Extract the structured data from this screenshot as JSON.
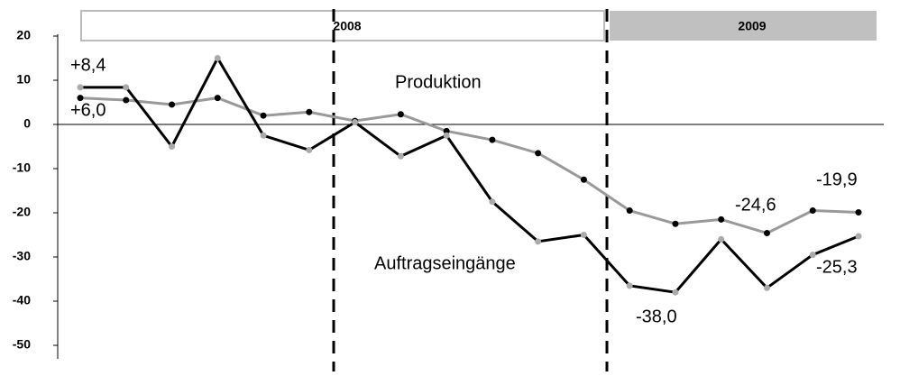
{
  "chart_data": {
    "type": "line",
    "periods": [
      "2008",
      "2009"
    ],
    "categories": [
      null,
      null,
      null,
      null,
      null,
      null,
      null,
      null,
      null,
      null,
      null,
      null,
      null,
      null,
      null,
      null,
      null,
      null
    ],
    "series": [
      {
        "name": "Produktion",
        "color": "#999999",
        "marker_color": "#000000",
        "values": [
          6.0,
          5.5,
          4.5,
          6.0,
          2.0,
          2.8,
          0.8,
          2.3,
          -1.5,
          -3.5,
          -6.5,
          -12.5,
          -19.5,
          -22.5,
          -21.5,
          -24.6,
          -19.5,
          -19.9
        ],
        "value_labels": [
          "+6,0",
          null,
          null,
          null,
          null,
          null,
          null,
          null,
          null,
          null,
          null,
          null,
          null,
          null,
          null,
          "-24,6",
          null,
          "-19,9"
        ]
      },
      {
        "name": "Auftragseingänge",
        "color": "#000000",
        "marker_color": "#aaaaaa",
        "values": [
          8.4,
          8.4,
          -5.0,
          15.0,
          -2.5,
          -5.8,
          0.5,
          -7.2,
          -2.5,
          -17.5,
          -26.5,
          -25.0,
          -36.5,
          -38.0,
          -26.0,
          -37.0,
          -29.5,
          -25.3
        ],
        "value_labels": [
          "+8,4",
          null,
          null,
          null,
          null,
          null,
          null,
          null,
          null,
          null,
          null,
          null,
          null,
          "-38,0",
          null,
          null,
          null,
          "-25,3"
        ]
      }
    ],
    "ylim": [
      -50,
      20
    ],
    "yticks": [
      -50,
      -40,
      -30,
      -20,
      -10,
      0,
      10,
      20
    ],
    "grid": false
  }
}
